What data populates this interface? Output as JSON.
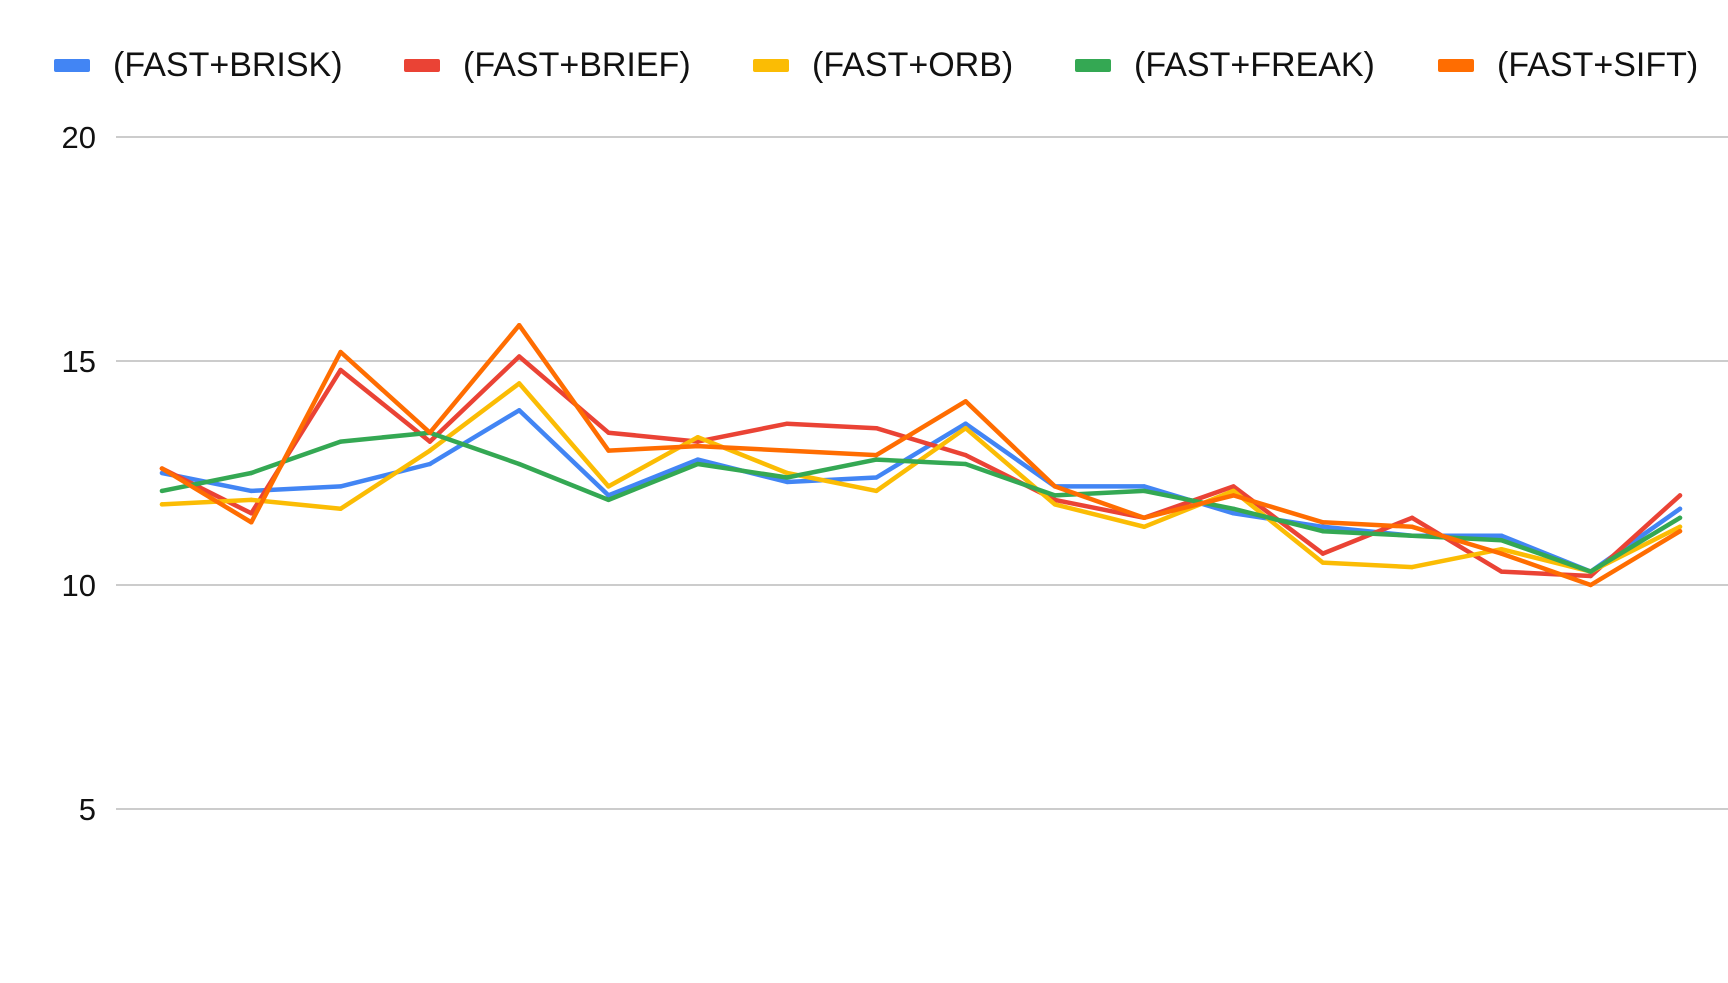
{
  "chart_data": {
    "type": "line",
    "title": "",
    "xlabel": "",
    "ylabel": "",
    "ylim": [
      2,
      20
    ],
    "yticks": [
      5,
      10,
      15,
      20
    ],
    "grid": true,
    "legend_position": "top",
    "x": [
      1,
      2,
      3,
      4,
      5,
      6,
      7,
      8,
      9,
      10,
      11,
      12,
      13,
      14,
      15,
      16,
      17,
      18
    ],
    "series": [
      {
        "name": "(FAST+BRISK)",
        "color": "#4285F4",
        "values": [
          12.5,
          12.1,
          12.2,
          12.7,
          13.9,
          12.0,
          12.8,
          12.3,
          12.4,
          13.6,
          12.2,
          12.2,
          11.6,
          11.3,
          11.1,
          11.1,
          10.3,
          11.7
        ]
      },
      {
        "name": "(FAST+BRIEF)",
        "color": "#EA4335",
        "values": [
          12.6,
          11.6,
          14.8,
          13.2,
          15.1,
          13.4,
          13.2,
          13.6,
          13.5,
          12.9,
          11.9,
          11.5,
          12.2,
          10.7,
          11.5,
          10.3,
          10.2,
          12.0
        ]
      },
      {
        "name": "(FAST+ORB)",
        "color": "#FBBC04",
        "values": [
          11.8,
          11.9,
          11.7,
          13.0,
          14.5,
          12.2,
          13.3,
          12.5,
          12.1,
          13.5,
          11.8,
          11.3,
          12.1,
          10.5,
          10.4,
          10.8,
          10.3,
          11.3
        ]
      },
      {
        "name": "(FAST+FREAK)",
        "color": "#34A853",
        "values": [
          12.1,
          12.5,
          13.2,
          13.4,
          12.7,
          11.9,
          12.7,
          12.4,
          12.8,
          12.7,
          12.0,
          12.1,
          11.7,
          11.2,
          11.1,
          11.0,
          10.3,
          11.5
        ]
      },
      {
        "name": "(FAST+SIFT)",
        "color": "#FF6D01",
        "values": [
          12.6,
          11.4,
          15.2,
          13.4,
          15.8,
          13.0,
          13.1,
          13.0,
          12.9,
          14.1,
          12.2,
          11.5,
          12.0,
          11.4,
          11.3,
          10.7,
          10.0,
          11.2
        ]
      }
    ]
  }
}
